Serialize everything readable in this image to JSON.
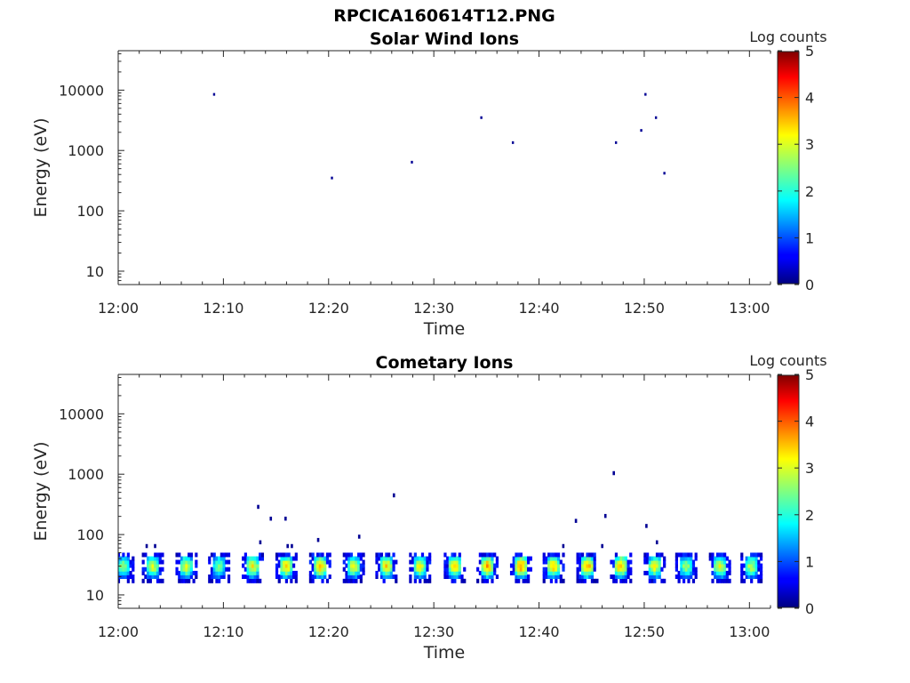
{
  "figure_title": "RPCICA160614T12.PNG",
  "chart_data": [
    {
      "type": "heatmap",
      "title": "Solar Wind Ions",
      "xlabel": "Time",
      "ylabel": "Energy (eV)",
      "x_ticks": [
        "12:00",
        "12:10",
        "12:20",
        "12:30",
        "12:40",
        "12:50",
        "13:00"
      ],
      "xlim_minutes": [
        0,
        62
      ],
      "y_ticks": [
        10,
        100,
        1000,
        10000
      ],
      "y_tick_labels": [
        "10",
        "100",
        "1000",
        "10000"
      ],
      "ylim": [
        6,
        45000
      ],
      "y_scale": "log",
      "colorbar": {
        "label": "Log counts",
        "ticks": [
          "0",
          "1",
          "2",
          "3",
          "4",
          "5"
        ],
        "range": [
          0,
          5
        ],
        "colormap": "jet"
      },
      "cells": [
        {
          "t": 9.1,
          "e": 8500,
          "v": 0.1
        },
        {
          "t": 20.3,
          "e": 350,
          "v": 0.1
        },
        {
          "t": 27.9,
          "e": 640,
          "v": 0.1
        },
        {
          "t": 34.5,
          "e": 3500,
          "v": 0.1
        },
        {
          "t": 37.5,
          "e": 1350,
          "v": 0.1
        },
        {
          "t": 47.3,
          "e": 1350,
          "v": 0.1
        },
        {
          "t": 49.7,
          "e": 2150,
          "v": 0.1
        },
        {
          "t": 50.1,
          "e": 8500,
          "v": 0.1
        },
        {
          "t": 51.1,
          "e": 3500,
          "v": 0.1
        },
        {
          "t": 51.9,
          "e": 420,
          "v": 0.1
        }
      ]
    },
    {
      "type": "heatmap",
      "title": "Cometary Ions",
      "xlabel": "Time",
      "ylabel": "Energy (eV)",
      "x_ticks": [
        "12:00",
        "12:10",
        "12:20",
        "12:30",
        "12:40",
        "12:50",
        "13:00"
      ],
      "xlim_minutes": [
        0,
        62
      ],
      "y_ticks": [
        10,
        100,
        1000,
        10000
      ],
      "y_tick_labels": [
        "10",
        "100",
        "1000",
        "10000"
      ],
      "ylim": [
        6,
        45000
      ],
      "y_scale": "log",
      "colorbar": {
        "label": "Log counts",
        "ticks": [
          "0",
          "1",
          "2",
          "3",
          "4",
          "5"
        ],
        "range": [
          0,
          5
        ],
        "colormap": "jet"
      },
      "burst_centers_minutes": [
        0.5,
        3.3,
        6.5,
        9.6,
        12.8,
        16.0,
        19.2,
        22.4,
        25.5,
        28.7,
        32.0,
        35.1,
        38.3,
        41.4,
        44.6,
        47.8,
        51.0,
        54.0,
        57.2,
        60.2
      ],
      "burst_peak_log_counts": [
        2.6,
        2.9,
        3.0,
        2.5,
        3.1,
        3.4,
        3.5,
        3.0,
        3.3,
        3.1,
        3.3,
        3.6,
        3.7,
        3.4,
        3.6,
        3.5,
        3.1,
        2.6,
        3.0,
        2.8
      ],
      "burst_energy_center_eV": 30,
      "isolated_cells": [
        {
          "t": 2.7,
          "e": 65,
          "v": 0.1
        },
        {
          "t": 3.5,
          "e": 65,
          "v": 0.1
        },
        {
          "t": 13.3,
          "e": 290,
          "v": 0.1
        },
        {
          "t": 13.5,
          "e": 75,
          "v": 0.1
        },
        {
          "t": 14.5,
          "e": 185,
          "v": 0.1
        },
        {
          "t": 15.9,
          "e": 185,
          "v": 0.1
        },
        {
          "t": 16.1,
          "e": 65,
          "v": 0.1
        },
        {
          "t": 16.5,
          "e": 65,
          "v": 0.1
        },
        {
          "t": 19.0,
          "e": 82,
          "v": 0.1
        },
        {
          "t": 22.9,
          "e": 93,
          "v": 0.1
        },
        {
          "t": 26.2,
          "e": 450,
          "v": 0.1
        },
        {
          "t": 42.3,
          "e": 65,
          "v": 0.1
        },
        {
          "t": 43.5,
          "e": 170,
          "v": 0.1
        },
        {
          "t": 46.0,
          "e": 65,
          "v": 0.1
        },
        {
          "t": 46.3,
          "e": 205,
          "v": 0.1
        },
        {
          "t": 47.1,
          "e": 1050,
          "v": 0.1
        },
        {
          "t": 50.2,
          "e": 140,
          "v": 0.1
        },
        {
          "t": 51.2,
          "e": 75,
          "v": 0.1
        }
      ]
    }
  ]
}
